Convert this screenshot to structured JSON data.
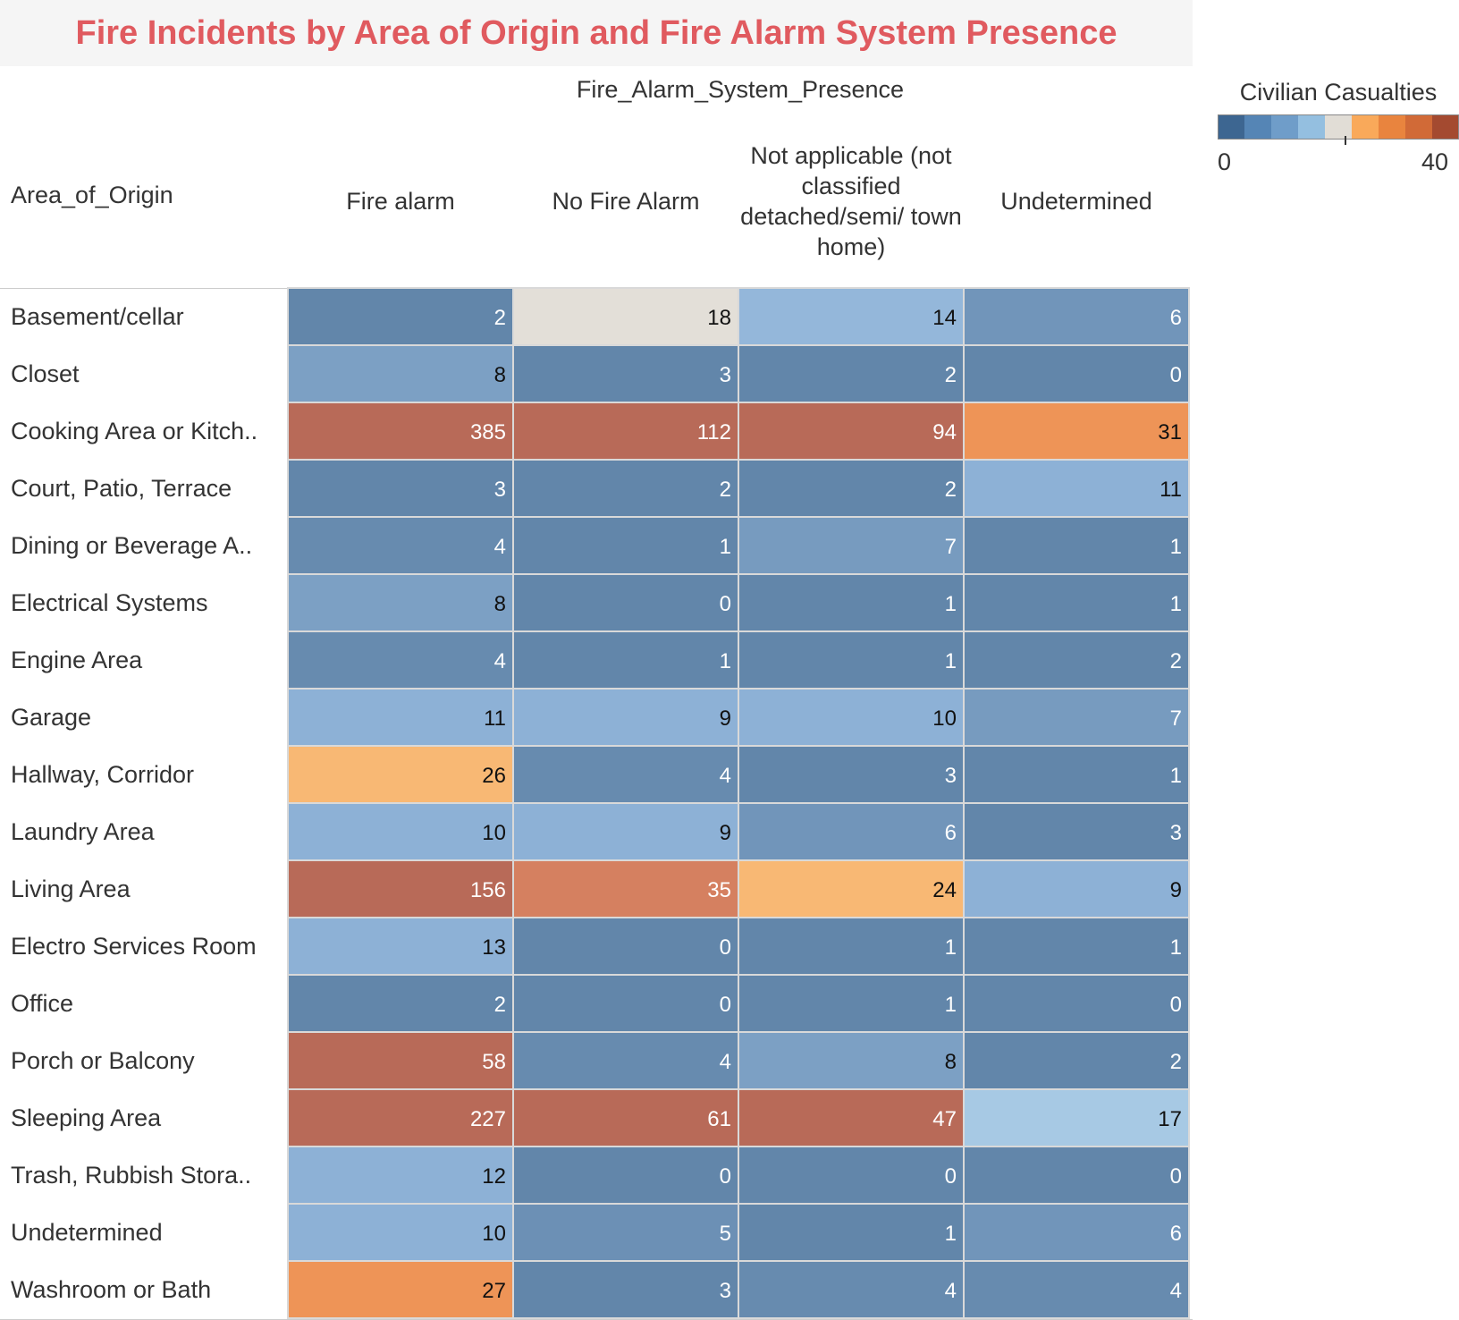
{
  "title": "Fire Incidents by Area of Origin and Fire Alarm System Presence",
  "chart_data": {
    "type": "heatmap",
    "title": "Fire Incidents by Area of Origin and Fire Alarm System Presence",
    "column_axis_title": "Fire_Alarm_System_Presence",
    "row_axis_title": "Area_of_Origin",
    "columns": [
      "Fire alarm",
      "No Fire Alarm",
      "Not applicable (not classified detached/semi/ town home)",
      "Undetermined"
    ],
    "rows": [
      "Basement/cellar",
      "Closet",
      "Cooking Area or Kitch..",
      "Court, Patio, Terrace",
      "Dining or Beverage A..",
      "Electrical Systems",
      "Engine Area",
      "Garage",
      "Hallway, Corridor",
      "Laundry Area",
      "Living Area",
      "Electro Services Room",
      "Office",
      "Porch or Balcony",
      "Sleeping Area",
      "Trash, Rubbish Stora..",
      "Undetermined",
      "Washroom or Bath"
    ],
    "values": [
      [
        2,
        18,
        14,
        6
      ],
      [
        8,
        3,
        2,
        0
      ],
      [
        385,
        112,
        94,
        31
      ],
      [
        3,
        2,
        2,
        11
      ],
      [
        4,
        1,
        7,
        1
      ],
      [
        8,
        0,
        1,
        1
      ],
      [
        4,
        1,
        1,
        2
      ],
      [
        11,
        9,
        10,
        7
      ],
      [
        26,
        4,
        3,
        1
      ],
      [
        10,
        9,
        6,
        3
      ],
      [
        156,
        35,
        24,
        9
      ],
      [
        13,
        0,
        1,
        1
      ],
      [
        2,
        0,
        1,
        0
      ],
      [
        58,
        4,
        8,
        2
      ],
      [
        227,
        61,
        47,
        17
      ],
      [
        12,
        0,
        0,
        0
      ],
      [
        10,
        5,
        1,
        6
      ],
      [
        27,
        3,
        4,
        4
      ]
    ],
    "color_legend": {
      "title": "Civilian Casualties",
      "min_label": "0",
      "max_label": "40",
      "range": [
        0,
        40
      ],
      "midpoint": 20,
      "palette": [
        "#3d6691",
        "#5585b5",
        "#6f9dc9",
        "#94bfe0",
        "#e1ddd6",
        "#f9a95a",
        "#e9843e",
        "#d16a37",
        "#a44a30"
      ]
    }
  }
}
